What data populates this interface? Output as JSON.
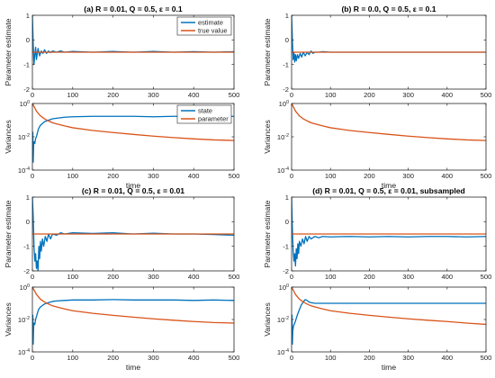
{
  "colors": {
    "blue": "#0072BD",
    "orange": "#D95319",
    "axis": "#262626"
  },
  "chart_data": [
    {
      "type": "line",
      "title": "(a) R = 0.01, Q = 0.5, ε = 0.1",
      "xlabel": "",
      "ylabel": "Parameter estimate",
      "xlim": [
        0,
        500
      ],
      "ylim": [
        -2,
        1
      ],
      "xticks": [
        0,
        100,
        200,
        300,
        400,
        500
      ],
      "yticks": [
        -2,
        -1,
        0,
        1
      ],
      "yscale": "linear",
      "legend": {
        "position": "top-right",
        "entries": [
          "estimate",
          "true value"
        ]
      },
      "series": [
        {
          "name": "estimate",
          "x": [
            0,
            2,
            4,
            6,
            8,
            10,
            14,
            18,
            22,
            26,
            30,
            35,
            40,
            45,
            50,
            60,
            70,
            80,
            100,
            150,
            200,
            250,
            300,
            350,
            400,
            450,
            500
          ],
          "y": [
            1.0,
            -0.2,
            -1.0,
            -0.6,
            -0.3,
            -0.8,
            -0.35,
            -0.65,
            -0.45,
            -0.55,
            -0.4,
            -0.55,
            -0.45,
            -0.52,
            -0.45,
            -0.5,
            -0.45,
            -0.5,
            -0.47,
            -0.5,
            -0.47,
            -0.5,
            -0.47,
            -0.5,
            -0.48,
            -0.5,
            -0.48
          ]
        },
        {
          "name": "true value",
          "x": [
            0,
            500
          ],
          "y": [
            -0.5,
            -0.5
          ]
        }
      ]
    },
    {
      "type": "line",
      "title": "(b) R = 0.0, Q = 0.5, ε = 0.1",
      "xlabel": "",
      "ylabel": "Parameter estimate",
      "xlim": [
        0,
        500
      ],
      "ylim": [
        -2,
        1
      ],
      "xticks": [
        0,
        100,
        200,
        300,
        400,
        500
      ],
      "yticks": [
        -2,
        -1,
        0,
        1
      ],
      "yscale": "linear",
      "series": [
        {
          "name": "estimate",
          "x": [
            0,
            2,
            4,
            6,
            8,
            10,
            12,
            15,
            18,
            22,
            26,
            30,
            35,
            40,
            45,
            50,
            55,
            60,
            70,
            80,
            100,
            150,
            200,
            250,
            300,
            350,
            400,
            450,
            500
          ],
          "y": [
            1.0,
            0.0,
            -0.8,
            -0.5,
            -0.9,
            -0.6,
            -0.85,
            -0.6,
            -0.75,
            -0.55,
            -0.7,
            -0.5,
            -0.65,
            -0.5,
            -0.6,
            -0.45,
            -0.55,
            -0.5,
            -0.5,
            -0.48,
            -0.5,
            -0.5,
            -0.5,
            -0.5,
            -0.5,
            -0.5,
            -0.5,
            -0.5,
            -0.5
          ]
        },
        {
          "name": "true value",
          "x": [
            0,
            500
          ],
          "y": [
            -0.5,
            -0.5
          ]
        }
      ]
    },
    {
      "type": "line",
      "title": "",
      "xlabel": "time",
      "ylabel": "Variances",
      "xlim": [
        0,
        500
      ],
      "ylim": [
        0.0001,
        1
      ],
      "xticks": [
        0,
        100,
        200,
        300,
        400,
        500
      ],
      "yticks": [
        0.0001,
        0.01,
        1
      ],
      "yscale": "log",
      "legend": {
        "position": "top-right",
        "entries": [
          "state",
          "parameter"
        ]
      },
      "series": [
        {
          "name": "state",
          "x": [
            1,
            2,
            3,
            4,
            6,
            8,
            10,
            15,
            20,
            30,
            40,
            50,
            60,
            80,
            100,
            150,
            200,
            250,
            300,
            350,
            400,
            450,
            500
          ],
          "y": [
            0.02,
            0.0003,
            0.003,
            0.005,
            0.004,
            0.008,
            0.01,
            0.03,
            0.05,
            0.08,
            0.1,
            0.12,
            0.13,
            0.15,
            0.16,
            0.17,
            0.17,
            0.17,
            0.16,
            0.17,
            0.17,
            0.16,
            0.17
          ]
        },
        {
          "name": "parameter",
          "x": [
            0,
            5,
            10,
            15,
            20,
            30,
            40,
            50,
            60,
            80,
            100,
            150,
            200,
            250,
            300,
            350,
            400,
            450,
            500
          ],
          "y": [
            1.0,
            0.6,
            0.35,
            0.25,
            0.18,
            0.12,
            0.09,
            0.07,
            0.06,
            0.045,
            0.035,
            0.024,
            0.018,
            0.014,
            0.011,
            0.009,
            0.0075,
            0.0065,
            0.006
          ]
        }
      ]
    },
    {
      "type": "line",
      "title": "",
      "xlabel": "time",
      "ylabel": "Variances",
      "xlim": [
        0,
        500
      ],
      "ylim": [
        0.0001,
        1
      ],
      "xticks": [
        0,
        100,
        200,
        300,
        400,
        500
      ],
      "yticks": [
        0.0001,
        0.01,
        1
      ],
      "yscale": "log",
      "series": [
        {
          "name": "parameter",
          "x": [
            0,
            5,
            10,
            15,
            20,
            30,
            40,
            50,
            60,
            80,
            100,
            150,
            200,
            250,
            300,
            350,
            400,
            450,
            500
          ],
          "y": [
            1.0,
            0.6,
            0.35,
            0.25,
            0.18,
            0.12,
            0.09,
            0.07,
            0.06,
            0.045,
            0.035,
            0.024,
            0.018,
            0.014,
            0.011,
            0.009,
            0.0075,
            0.0065,
            0.006
          ]
        }
      ]
    },
    {
      "type": "line",
      "title": "(c) R = 0.01, Q = 0.5, ε = 0.01",
      "xlabel": "",
      "ylabel": "Parameter estimate",
      "xlim": [
        0,
        500
      ],
      "ylim": [
        -2,
        1
      ],
      "xticks": [
        0,
        100,
        200,
        300,
        400,
        500
      ],
      "yticks": [
        -2,
        -1,
        0,
        1
      ],
      "yscale": "linear",
      "series": [
        {
          "name": "estimate",
          "x": [
            0,
            2,
            4,
            6,
            8,
            10,
            12,
            14,
            16,
            18,
            20,
            22,
            25,
            28,
            32,
            36,
            40,
            45,
            50,
            60,
            70,
            80,
            100,
            150,
            200,
            250,
            300,
            350,
            400,
            450,
            500
          ],
          "y": [
            1.0,
            0.2,
            -1.0,
            -1.6,
            -1.3,
            -1.9,
            -1.6,
            -2.0,
            -1.0,
            -1.5,
            -0.8,
            -1.2,
            -0.7,
            -1.0,
            -0.6,
            -0.8,
            -0.5,
            -0.7,
            -0.5,
            -0.55,
            -0.45,
            -0.5,
            -0.45,
            -0.48,
            -0.45,
            -0.5,
            -0.47,
            -0.5,
            -0.5,
            -0.52,
            -0.55
          ]
        },
        {
          "name": "true value",
          "x": [
            0,
            500
          ],
          "y": [
            -0.5,
            -0.5
          ]
        }
      ]
    },
    {
      "type": "line",
      "title": "(d) R = 0.01, Q = 0.5, ε = 0.01, subsampled",
      "xlabel": "",
      "ylabel": "Parameter estimate",
      "xlim": [
        0,
        500
      ],
      "ylim": [
        -2,
        1
      ],
      "xticks": [
        0,
        100,
        200,
        300,
        400,
        500
      ],
      "yticks": [
        -2,
        -1,
        0,
        1
      ],
      "yscale": "linear",
      "series": [
        {
          "name": "estimate",
          "x": [
            0,
            2,
            4,
            6,
            8,
            10,
            12,
            14,
            16,
            18,
            20,
            24,
            28,
            32,
            36,
            40,
            45,
            50,
            60,
            70,
            80,
            100,
            150,
            200,
            250,
            300,
            350,
            400,
            450,
            500
          ],
          "y": [
            1.0,
            -0.3,
            -1.2,
            -1.6,
            -1.3,
            -1.8,
            -1.1,
            -1.5,
            -0.9,
            -1.3,
            -0.8,
            -1.0,
            -0.7,
            -0.9,
            -0.6,
            -0.8,
            -0.6,
            -0.7,
            -0.6,
            -0.65,
            -0.6,
            -0.62,
            -0.6,
            -0.62,
            -0.6,
            -0.62,
            -0.6,
            -0.6,
            -0.62,
            -0.6
          ]
        },
        {
          "name": "true value",
          "x": [
            0,
            500
          ],
          "y": [
            -0.5,
            -0.5
          ]
        }
      ]
    },
    {
      "type": "line",
      "title": "",
      "xlabel": "time",
      "ylabel": "Variances",
      "xlim": [
        0,
        500
      ],
      "ylim": [
        0.0001,
        1
      ],
      "xticks": [
        0,
        100,
        200,
        300,
        400,
        500
      ],
      "yticks": [
        0.0001,
        0.01,
        1
      ],
      "yscale": "log",
      "series": [
        {
          "name": "state",
          "x": [
            1,
            2,
            3,
            4,
            6,
            8,
            10,
            15,
            20,
            30,
            40,
            50,
            60,
            80,
            100,
            150,
            200,
            250,
            300,
            350,
            400,
            450,
            500
          ],
          "y": [
            0.02,
            0.0003,
            0.003,
            0.006,
            0.005,
            0.01,
            0.015,
            0.04,
            0.06,
            0.09,
            0.11,
            0.13,
            0.14,
            0.15,
            0.16,
            0.16,
            0.17,
            0.16,
            0.16,
            0.16,
            0.15,
            0.16,
            0.15
          ]
        },
        {
          "name": "parameter",
          "x": [
            0,
            5,
            10,
            15,
            20,
            30,
            40,
            50,
            60,
            80,
            100,
            150,
            200,
            250,
            300,
            350,
            400,
            450,
            500
          ],
          "y": [
            1.0,
            0.6,
            0.35,
            0.25,
            0.18,
            0.12,
            0.09,
            0.07,
            0.06,
            0.045,
            0.035,
            0.024,
            0.018,
            0.014,
            0.011,
            0.009,
            0.0075,
            0.0065,
            0.006
          ]
        }
      ]
    },
    {
      "type": "line",
      "title": "",
      "xlabel": "time",
      "ylabel": "Variances",
      "xlim": [
        0,
        500
      ],
      "ylim": [
        0.0001,
        1
      ],
      "xticks": [
        0,
        100,
        200,
        300,
        400,
        500
      ],
      "yticks": [
        0.0001,
        0.01,
        1
      ],
      "yscale": "log",
      "series": [
        {
          "name": "state",
          "x": [
            1,
            2,
            3,
            5,
            8,
            10,
            15,
            20,
            25,
            30,
            35,
            40,
            45,
            50,
            60,
            80,
            100,
            150,
            200,
            250,
            300,
            350,
            400,
            450,
            500
          ],
          "y": [
            0.02,
            0.0003,
            0.002,
            0.004,
            0.006,
            0.008,
            0.02,
            0.04,
            0.08,
            0.12,
            0.17,
            0.15,
            0.12,
            0.11,
            0.1,
            0.1,
            0.1,
            0.1,
            0.1,
            0.1,
            0.1,
            0.1,
            0.1,
            0.1,
            0.1
          ]
        },
        {
          "name": "parameter",
          "x": [
            0,
            5,
            10,
            15,
            20,
            30,
            40,
            50,
            60,
            80,
            100,
            150,
            200,
            250,
            300,
            350,
            400,
            450,
            500
          ],
          "y": [
            1.0,
            0.6,
            0.35,
            0.25,
            0.18,
            0.12,
            0.09,
            0.07,
            0.06,
            0.045,
            0.035,
            0.024,
            0.018,
            0.014,
            0.011,
            0.009,
            0.0075,
            0.006,
            0.005
          ]
        }
      ]
    }
  ]
}
